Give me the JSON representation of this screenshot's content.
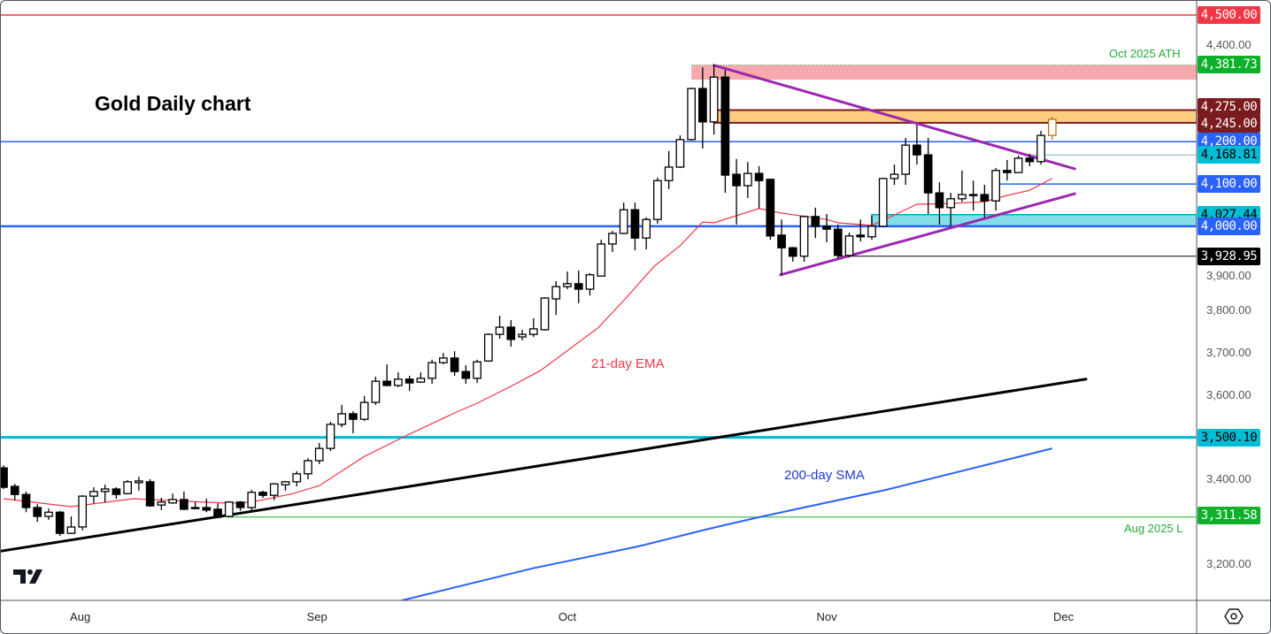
{
  "chart_data": {
    "type": "candlestick",
    "title": "Gold Daily chart",
    "ylim": [
      3100,
      4523
    ],
    "grid": false,
    "y_ticks": [
      {
        "value": 4400,
        "label": "4,400.00"
      },
      {
        "value": 3900,
        "label": "3,900.00"
      },
      {
        "value": 3800,
        "label": "3,800.00"
      },
      {
        "value": 3700,
        "label": "3,700.00"
      },
      {
        "value": 3600,
        "label": "3,600.00"
      },
      {
        "value": 3400,
        "label": "3,400.00"
      },
      {
        "value": 3200,
        "label": "3,200.00"
      }
    ],
    "x_ticks": [
      {
        "bar": 6.8,
        "label": "Aug"
      },
      {
        "bar": 27.8,
        "label": "Sep"
      },
      {
        "bar": 50,
        "label": "Oct"
      },
      {
        "bar": 73,
        "label": "Nov"
      },
      {
        "bar": 94,
        "label": "Dec"
      }
    ],
    "candles_ohlc": [
      [
        3428,
        3434,
        3378,
        3382
      ],
      [
        3384,
        3390,
        3351,
        3365
      ],
      [
        3365,
        3372,
        3323,
        3334
      ],
      [
        3334,
        3342,
        3300,
        3313
      ],
      [
        3313,
        3332,
        3305,
        3323
      ],
      [
        3323,
        3326,
        3267,
        3273
      ],
      [
        3273,
        3313,
        3271,
        3288
      ],
      [
        3288,
        3363,
        3280,
        3361
      ],
      [
        3361,
        3382,
        3344,
        3372
      ],
      [
        3372,
        3388,
        3346,
        3378
      ],
      [
        3378,
        3382,
        3355,
        3365
      ],
      [
        3367,
        3399,
        3365,
        3395
      ],
      [
        3393,
        3407,
        3374,
        3397
      ],
      [
        3395,
        3401,
        3336,
        3338
      ],
      [
        3340,
        3357,
        3328,
        3347
      ],
      [
        3345,
        3367,
        3343,
        3353
      ],
      [
        3353,
        3372,
        3328,
        3330
      ],
      [
        3334,
        3347,
        3330,
        3332
      ],
      [
        3334,
        3355,
        3323,
        3328
      ],
      [
        3330,
        3344,
        3309,
        3311
      ],
      [
        3313,
        3349,
        3311,
        3347
      ],
      [
        3347,
        3349,
        3326,
        3334
      ],
      [
        3334,
        3376,
        3326,
        3370
      ],
      [
        3370,
        3374,
        3357,
        3363
      ],
      [
        3363,
        3392,
        3351,
        3390
      ],
      [
        3388,
        3397,
        3374,
        3395
      ],
      [
        3395,
        3420,
        3384,
        3414
      ],
      [
        3414,
        3451,
        3401,
        3445
      ],
      [
        3445,
        3487,
        3437,
        3474
      ],
      [
        3474,
        3537,
        3468,
        3531
      ],
      [
        3531,
        3577,
        3524,
        3556
      ],
      [
        3556,
        3562,
        3510,
        3543
      ],
      [
        3543,
        3598,
        3539,
        3583
      ],
      [
        3583,
        3644,
        3577,
        3633
      ],
      [
        3633,
        3673,
        3621,
        3623
      ],
      [
        3623,
        3654,
        3619,
        3638
      ],
      [
        3638,
        3646,
        3610,
        3629
      ],
      [
        3631,
        3654,
        3629,
        3640
      ],
      [
        3640,
        3684,
        3627,
        3677
      ],
      [
        3677,
        3700,
        3673,
        3688
      ],
      [
        3688,
        3704,
        3646,
        3656
      ],
      [
        3656,
        3671,
        3627,
        3640
      ],
      [
        3640,
        3684,
        3629,
        3679
      ],
      [
        3681,
        3746,
        3679,
        3744
      ],
      [
        3744,
        3788,
        3734,
        3761
      ],
      [
        3761,
        3778,
        3715,
        3732
      ],
      [
        3738,
        3755,
        3730,
        3744
      ],
      [
        3744,
        3782,
        3738,
        3757
      ],
      [
        3755,
        3832,
        3753,
        3830
      ],
      [
        3828,
        3870,
        3790,
        3857
      ],
      [
        3857,
        3893,
        3851,
        3864
      ],
      [
        3864,
        3895,
        3818,
        3851
      ],
      [
        3851,
        3889,
        3836,
        3885
      ],
      [
        3882,
        3968,
        3882,
        3958
      ],
      [
        3958,
        3989,
        3939,
        3983
      ],
      [
        3983,
        4056,
        3981,
        4039
      ],
      [
        4039,
        4056,
        3943,
        3972
      ],
      [
        3972,
        4021,
        3945,
        4016
      ],
      [
        4016,
        4115,
        4006,
        4108
      ],
      [
        4108,
        4178,
        4088,
        4140
      ],
      [
        4140,
        4215,
        4138,
        4205
      ],
      [
        4205,
        4328,
        4203,
        4326
      ],
      [
        4326,
        4376,
        4184,
        4247
      ],
      [
        4247,
        4381.73,
        4217,
        4353
      ],
      [
        4353,
        4370,
        4079,
        4121
      ],
      [
        4123,
        4159,
        4004,
        4096
      ],
      [
        4096,
        4152,
        4067,
        4125
      ],
      [
        4125,
        4142,
        4042,
        4108
      ],
      [
        4111,
        4113,
        3968,
        3977
      ],
      [
        3979,
        4016,
        3885,
        3949
      ],
      [
        3949,
        3951,
        3916,
        3929
      ],
      [
        3929,
        4025,
        3916,
        4023
      ],
      [
        4023,
        4044,
        3972,
        4000
      ],
      [
        4000,
        4029,
        3962,
        3993
      ],
      [
        3993,
        4004,
        3924,
        3931
      ],
      [
        3931,
        3985,
        3926,
        3977
      ],
      [
        3979,
        4016,
        3964,
        3975
      ],
      [
        3975,
        4025,
        3968,
        4000
      ],
      [
        4000,
        4115,
        3998,
        4113
      ],
      [
        4113,
        4146,
        4098,
        4123
      ],
      [
        4123,
        4209,
        4098,
        4192
      ],
      [
        4192,
        4240,
        4146,
        4169
      ],
      [
        4169,
        4209,
        4029,
        4079
      ],
      [
        4079,
        4104,
        4004,
        4044
      ],
      [
        4044,
        4079,
        4000,
        4065
      ],
      [
        4065,
        4132,
        4058,
        4075
      ],
      [
        4075,
        4108,
        4037,
        4075
      ],
      [
        4075,
        4098,
        4021,
        4060
      ],
      [
        4060,
        4138,
        4037,
        4132
      ],
      [
        4132,
        4157,
        4108,
        4127
      ],
      [
        4127,
        4167,
        4127,
        4161
      ],
      [
        4161,
        4171,
        4142,
        4153
      ],
      [
        4153,
        4226,
        4146,
        4215
      ],
      [
        4215,
        4259,
        4205,
        4253
      ]
    ],
    "series": [
      {
        "name": "21-day EMA",
        "color": "#f23645",
        "points": [
          [
            0,
            3355
          ],
          [
            6,
            3336
          ],
          [
            11.5,
            3355
          ],
          [
            20,
            3344
          ],
          [
            22,
            3347
          ],
          [
            25.7,
            3367
          ],
          [
            28,
            3386
          ],
          [
            32,
            3455
          ],
          [
            36,
            3508
          ],
          [
            40,
            3558
          ],
          [
            42,
            3581
          ],
          [
            45,
            3621
          ],
          [
            47.6,
            3658
          ],
          [
            52.7,
            3759
          ],
          [
            55,
            3824
          ],
          [
            57.7,
            3905
          ],
          [
            60,
            3954
          ],
          [
            62,
            4010
          ],
          [
            63,
            4008
          ],
          [
            67,
            4042
          ],
          [
            69,
            4031
          ],
          [
            73,
            4016
          ],
          [
            74,
            4008
          ],
          [
            77,
            4002
          ],
          [
            78,
            4014
          ],
          [
            81,
            4052
          ],
          [
            84,
            4054
          ],
          [
            87,
            4058
          ],
          [
            89,
            4073
          ],
          [
            91,
            4085
          ],
          [
            93,
            4113
          ]
        ]
      },
      {
        "name": "200-day SMA",
        "color": "#2962ff",
        "points": [
          [
            35.3,
            3114
          ],
          [
            46.9,
            3190
          ],
          [
            56.3,
            3242
          ],
          [
            62.6,
            3284
          ],
          [
            67.3,
            3313
          ],
          [
            78.3,
            3376
          ],
          [
            93,
            3474
          ]
        ]
      }
    ],
    "trendlines": [
      {
        "color": "#000000",
        "points": [
          [
            -0.2,
            3231
          ],
          [
            96,
            3638
          ]
        ]
      },
      {
        "color": "#9c27b0",
        "points": [
          [
            63,
            4381
          ],
          [
            95,
            4136
          ]
        ]
      },
      {
        "color": "#9c27b0",
        "points": [
          [
            68.9,
            3885
          ],
          [
            95,
            4077
          ]
        ]
      }
    ],
    "zones": [
      {
        "low": 4347,
        "high": 4381.73,
        "from_bar": 61,
        "fill": "#f7a9ad",
        "border": "#f7a9ad"
      },
      {
        "low": 4245,
        "high": 4275,
        "from_bar": 63,
        "fill": "#ffcc80",
        "border": "#7b1a1f"
      },
      {
        "low": 4000,
        "high": 4027.44,
        "from_bar": 77,
        "fill": "#84dde8",
        "border": "#00acc1"
      }
    ],
    "levels": [
      {
        "price": 4500,
        "label": "4,500.00",
        "color": "#f23645",
        "text": "#ffffff",
        "from_bar": -1,
        "width": 1.5
      },
      {
        "price": 4381.73,
        "label": "4,381.73",
        "color": "#0db02b",
        "text": "#ffffff",
        "from_bar": 61,
        "width": 0,
        "dotted": true
      },
      {
        "price": 4275,
        "label": "4,275.00",
        "color": "#7b1a1f",
        "text": "#ffffff",
        "from_bar": 63,
        "width": 2
      },
      {
        "price": 4245,
        "label": "4,245.00",
        "color": "#7b1a1f",
        "text": "#ffffff",
        "from_bar": 63,
        "width": 2
      },
      {
        "price": 4200,
        "label": "4,200.00",
        "color": "#2962ff",
        "text": "#ffffff",
        "from_bar": -1,
        "width": 1.5
      },
      {
        "price": 4168.81,
        "label": "4,168.81",
        "color": "#00bcd4",
        "text": "#000000",
        "from_bar": 90.8,
        "width": 1,
        "line_color": "#7fb6bd"
      },
      {
        "price": 4100,
        "label": "4,100.00",
        "color": "#2962ff",
        "text": "#ffffff",
        "from_bar": 88,
        "width": 1.5
      },
      {
        "price": 4027.44,
        "label": "4,027.44",
        "color": "#00bcd4",
        "text": "#000000",
        "from_bar": 77,
        "width": 0
      },
      {
        "price": 4000,
        "label": "4,000.00",
        "color": "#2962ff",
        "text": "#ffffff",
        "from_bar": -1,
        "width": 2.5
      },
      {
        "price": 3928.95,
        "label": "3,928.95",
        "color": "#000000",
        "text": "#ffffff",
        "from_bar": 74,
        "width": 1
      },
      {
        "price": 3500.1,
        "label": "3,500.10",
        "color": "#00bcd4",
        "text": "#000000",
        "from_bar": -1,
        "width": 3
      },
      {
        "price": 3311.58,
        "label": "3,311.58",
        "color": "#0db02b",
        "text": "#ffffff",
        "from_bar": 19.8,
        "width": 1,
        "line_color": "#22ab3c"
      }
    ],
    "annotations": {
      "ema_label": "21-day EMA",
      "sma_label": "200-day SMA",
      "ath_label": "Oct 2025 ATH",
      "low_label": "Aug 2025 L"
    },
    "colors": {
      "up_body": "#ffffff",
      "down_body": "#000000",
      "wick": "#000000",
      "last_candle": "#b8731d"
    }
  },
  "branding": {
    "logo": "TV"
  },
  "icons": {
    "settings": "settings-hexagon-icon"
  }
}
